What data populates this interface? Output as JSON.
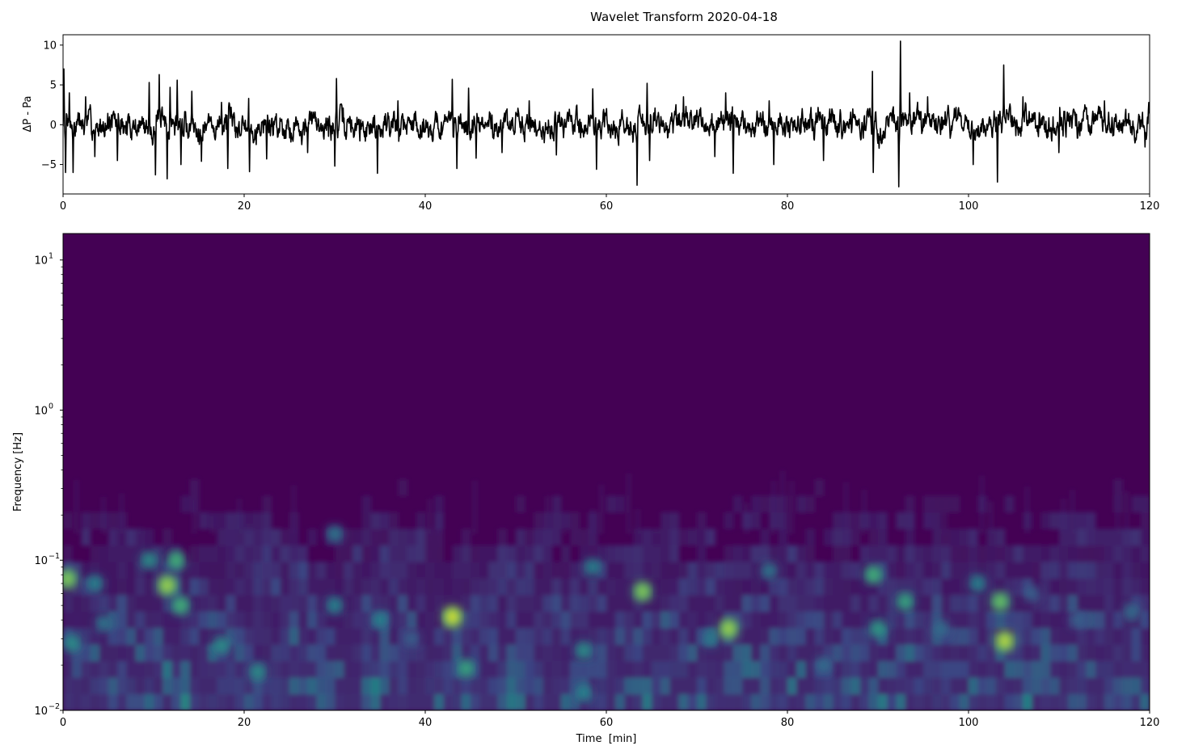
{
  "title": "Wavelet Transform 2020-04-18",
  "chart_data": [
    {
      "type": "line",
      "name": "pressure-trace",
      "xlabel": "",
      "ylabel": "ΔP - Pa",
      "xlim": [
        0,
        120
      ],
      "ylim": [
        -8.7,
        11.3
      ],
      "x_ticks": [
        0,
        20,
        40,
        60,
        80,
        100,
        120
      ],
      "x_tick_labels": [
        "0",
        "20",
        "40",
        "60",
        "80",
        "100",
        "120"
      ],
      "y_ticks": [
        10,
        5,
        0,
        -5
      ],
      "y_tick_labels": [
        "10",
        "5",
        "0",
        "−5"
      ],
      "line_color": "#000000",
      "grid": false,
      "noise_amplitude_typical": 1.3,
      "peaks": [
        {
          "x": 0.1,
          "y": 7.0
        },
        {
          "x": 0.3,
          "y": -6.0
        },
        {
          "x": 0.7,
          "y": 4.0
        },
        {
          "x": 1.1,
          "y": -6.0
        },
        {
          "x": 2.5,
          "y": 3.5
        },
        {
          "x": 3.5,
          "y": -4.0
        },
        {
          "x": 6.0,
          "y": -4.5
        },
        {
          "x": 9.5,
          "y": 5.3
        },
        {
          "x": 10.2,
          "y": -6.3
        },
        {
          "x": 10.6,
          "y": 6.3
        },
        {
          "x": 11.5,
          "y": -6.8
        },
        {
          "x": 11.8,
          "y": 4.7
        },
        {
          "x": 12.6,
          "y": 5.6
        },
        {
          "x": 13.0,
          "y": -5.0
        },
        {
          "x": 14.2,
          "y": 4.2
        },
        {
          "x": 15.3,
          "y": -4.6
        },
        {
          "x": 17.5,
          "y": 2.8
        },
        {
          "x": 18.2,
          "y": -5.5
        },
        {
          "x": 20.5,
          "y": 3.3
        },
        {
          "x": 20.6,
          "y": -5.9
        },
        {
          "x": 22.5,
          "y": -4.3
        },
        {
          "x": 27.0,
          "y": -3.5
        },
        {
          "x": 30.2,
          "y": 5.8
        },
        {
          "x": 30.0,
          "y": -5.2
        },
        {
          "x": 34.7,
          "y": -6.1
        },
        {
          "x": 37.0,
          "y": 3.0
        },
        {
          "x": 43.0,
          "y": 5.7
        },
        {
          "x": 43.5,
          "y": -5.5
        },
        {
          "x": 44.8,
          "y": 4.6
        },
        {
          "x": 45.6,
          "y": -4.2
        },
        {
          "x": 48.5,
          "y": -3.5
        },
        {
          "x": 51.5,
          "y": 3.0
        },
        {
          "x": 54.5,
          "y": -3.8
        },
        {
          "x": 58.5,
          "y": 4.5
        },
        {
          "x": 58.9,
          "y": -5.6
        },
        {
          "x": 63.4,
          "y": -7.6
        },
        {
          "x": 64.5,
          "y": 5.2
        },
        {
          "x": 64.8,
          "y": -4.5
        },
        {
          "x": 68.5,
          "y": 3.5
        },
        {
          "x": 72.0,
          "y": -4.0
        },
        {
          "x": 73.2,
          "y": 4.0
        },
        {
          "x": 74.0,
          "y": -6.1
        },
        {
          "x": 78.0,
          "y": 3.0
        },
        {
          "x": 78.5,
          "y": -5.0
        },
        {
          "x": 84.0,
          "y": -4.5
        },
        {
          "x": 89.4,
          "y": 6.7
        },
        {
          "x": 89.5,
          "y": -6.0
        },
        {
          "x": 92.5,
          "y": 10.5
        },
        {
          "x": 92.3,
          "y": -7.8
        },
        {
          "x": 93.5,
          "y": 4.0
        },
        {
          "x": 95.5,
          "y": 3.5
        },
        {
          "x": 100.5,
          "y": -5.0
        },
        {
          "x": 103.2,
          "y": -7.2
        },
        {
          "x": 103.9,
          "y": 7.5
        },
        {
          "x": 106.0,
          "y": 3.5
        },
        {
          "x": 110.0,
          "y": -3.5
        },
        {
          "x": 115.0,
          "y": 3.0
        },
        {
          "x": 119.5,
          "y": 3.2
        },
        {
          "x": 119.5,
          "y": -2.8
        }
      ]
    },
    {
      "type": "heatmap",
      "name": "wavelet-scalogram",
      "xlabel": "Time  [min]",
      "ylabel": "Frequency [Hz]",
      "xlim": [
        0,
        120
      ],
      "ylim": [
        0.01,
        15
      ],
      "y_scale": "log",
      "x_ticks": [
        0,
        20,
        40,
        60,
        80,
        100,
        120
      ],
      "x_tick_labels": [
        "0",
        "20",
        "40",
        "60",
        "80",
        "100",
        "120"
      ],
      "y_ticks": [
        0.01,
        0.1,
        1,
        10
      ],
      "y_tick_labels": [
        "10",
        "10",
        "10",
        "10"
      ],
      "y_tick_exponents": [
        "−2",
        "−1",
        "0",
        "1"
      ],
      "colormap": "viridis",
      "colormap_stops": [
        "#440154",
        "#3b528b",
        "#21918c",
        "#5ec962",
        "#fde725"
      ],
      "background_color": "#440154",
      "hotspots": [
        {
          "time": 0.5,
          "freq": 0.075,
          "power": 0.85
        },
        {
          "time": 1.0,
          "freq": 0.028,
          "power": 0.55
        },
        {
          "time": 3.5,
          "freq": 0.07,
          "power": 0.5
        },
        {
          "time": 4.5,
          "freq": 0.038,
          "power": 0.45
        },
        {
          "time": 9.5,
          "freq": 0.1,
          "power": 0.55
        },
        {
          "time": 11.5,
          "freq": 0.068,
          "power": 0.9
        },
        {
          "time": 12.5,
          "freq": 0.1,
          "power": 0.7
        },
        {
          "time": 13.0,
          "freq": 0.05,
          "power": 0.7
        },
        {
          "time": 17.5,
          "freq": 0.027,
          "power": 0.55
        },
        {
          "time": 21.5,
          "freq": 0.018,
          "power": 0.55
        },
        {
          "time": 30.0,
          "freq": 0.15,
          "power": 0.45
        },
        {
          "time": 30.0,
          "freq": 0.05,
          "power": 0.5
        },
        {
          "time": 35.0,
          "freq": 0.04,
          "power": 0.5
        },
        {
          "time": 38.5,
          "freq": 0.03,
          "power": 0.35
        },
        {
          "time": 43.0,
          "freq": 0.042,
          "power": 1.0
        },
        {
          "time": 44.5,
          "freq": 0.019,
          "power": 0.65
        },
        {
          "time": 57.5,
          "freq": 0.025,
          "power": 0.55
        },
        {
          "time": 58.5,
          "freq": 0.09,
          "power": 0.5
        },
        {
          "time": 57.5,
          "freq": 0.013,
          "power": 0.5
        },
        {
          "time": 64.0,
          "freq": 0.062,
          "power": 0.85
        },
        {
          "time": 71.5,
          "freq": 0.03,
          "power": 0.45
        },
        {
          "time": 73.5,
          "freq": 0.035,
          "power": 0.9
        },
        {
          "time": 78.0,
          "freq": 0.085,
          "power": 0.45
        },
        {
          "time": 84.0,
          "freq": 0.02,
          "power": 0.4
        },
        {
          "time": 89.5,
          "freq": 0.08,
          "power": 0.7
        },
        {
          "time": 90.0,
          "freq": 0.035,
          "power": 0.6
        },
        {
          "time": 93.0,
          "freq": 0.053,
          "power": 0.65
        },
        {
          "time": 97.0,
          "freq": 0.035,
          "power": 0.4
        },
        {
          "time": 101.0,
          "freq": 0.07,
          "power": 0.5
        },
        {
          "time": 103.5,
          "freq": 0.053,
          "power": 0.8
        },
        {
          "time": 104.0,
          "freq": 0.029,
          "power": 0.95
        },
        {
          "time": 107.0,
          "freq": 0.06,
          "power": 0.35
        },
        {
          "time": 112.0,
          "freq": 0.04,
          "power": 0.35
        },
        {
          "time": 118.0,
          "freq": 0.045,
          "power": 0.4
        }
      ]
    }
  ]
}
